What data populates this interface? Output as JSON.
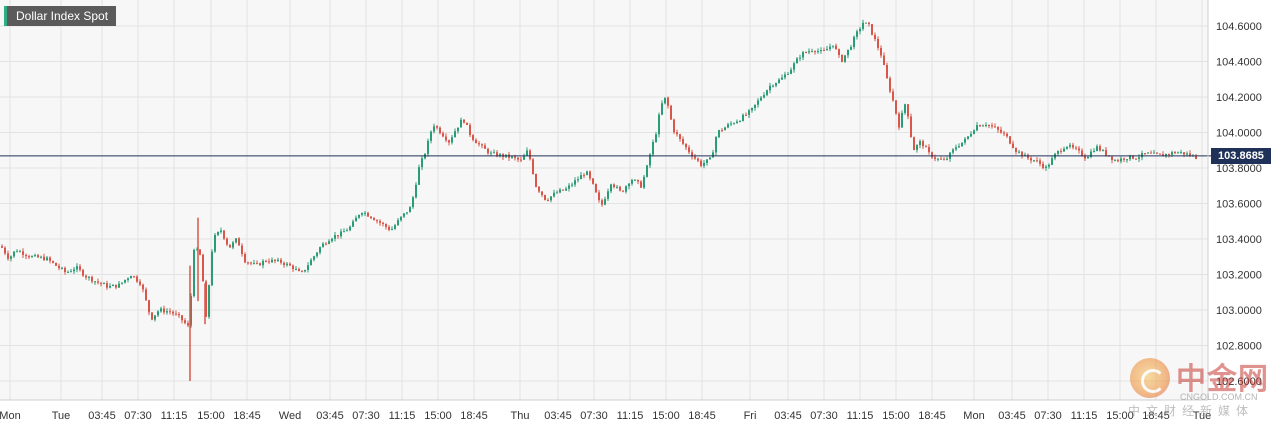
{
  "chart_data": {
    "type": "candlestick",
    "title": "Dollar Index Spot",
    "current_price": "103.8685",
    "current_value": 103.8685,
    "ylim": [
      102.55,
      104.7
    ],
    "y_ticks": [
      "104.6000",
      "104.4000",
      "104.2000",
      "104.0000",
      "103.8000",
      "103.6000",
      "103.4000",
      "103.2000",
      "103.0000",
      "102.8000",
      "102.6000"
    ],
    "x_tick_labels": [
      "Mon",
      "Tue",
      "03:45",
      "07:30",
      "11:15",
      "15:00",
      "18:45",
      "Wed",
      "03:45",
      "07:30",
      "11:15",
      "15:00",
      "18:45",
      "Thu",
      "03:45",
      "07:30",
      "11:15",
      "15:00",
      "18:45",
      "Fri",
      "03:45",
      "07:30",
      "11:15",
      "15:00",
      "18:45",
      "Mon",
      "03:45",
      "07:30",
      "11:15",
      "15:00",
      "18:45",
      "Tue"
    ],
    "grid": true,
    "colors": {
      "up": "#2b9d74",
      "down": "#d9574a",
      "price_line": "#1f3159"
    },
    "series": [
      {
        "name": "",
        "anchors": [
          [
            0,
            103.36
          ],
          [
            8,
            103.29
          ],
          [
            15,
            103.34
          ],
          [
            30,
            103.3
          ],
          [
            45,
            103.29
          ],
          [
            55,
            103.25
          ],
          [
            65,
            103.21
          ],
          [
            75,
            103.24
          ],
          [
            85,
            103.19
          ],
          [
            95,
            103.16
          ],
          [
            108,
            103.13
          ],
          [
            118,
            103.14
          ],
          [
            130,
            103.2
          ],
          [
            140,
            103.15
          ],
          [
            150,
            102.95
          ],
          [
            158,
            103.0
          ],
          [
            170,
            102.99
          ],
          [
            180,
            102.95
          ],
          [
            188,
            102.9
          ],
          [
            193,
            103.35
          ],
          [
            200,
            103.3
          ],
          [
            205,
            102.95
          ],
          [
            212,
            103.4
          ],
          [
            220,
            103.45
          ],
          [
            228,
            103.35
          ],
          [
            236,
            103.4
          ],
          [
            244,
            103.28
          ],
          [
            255,
            103.25
          ],
          [
            265,
            103.28
          ],
          [
            280,
            103.27
          ],
          [
            292,
            103.24
          ],
          [
            300,
            103.2
          ],
          [
            310,
            103.28
          ],
          [
            320,
            103.36
          ],
          [
            330,
            103.41
          ],
          [
            340,
            103.43
          ],
          [
            350,
            103.47
          ],
          [
            360,
            103.56
          ],
          [
            372,
            103.52
          ],
          [
            382,
            103.48
          ],
          [
            390,
            103.45
          ],
          [
            400,
            103.52
          ],
          [
            410,
            103.58
          ],
          [
            418,
            103.8
          ],
          [
            425,
            103.9
          ],
          [
            432,
            104.05
          ],
          [
            440,
            104.0
          ],
          [
            448,
            103.95
          ],
          [
            455,
            104.02
          ],
          [
            462,
            104.08
          ],
          [
            470,
            103.98
          ],
          [
            480,
            103.92
          ],
          [
            490,
            103.88
          ],
          [
            500,
            103.87
          ],
          [
            510,
            103.86
          ],
          [
            520,
            103.84
          ],
          [
            527,
            103.9
          ],
          [
            535,
            103.7
          ],
          [
            545,
            103.62
          ],
          [
            555,
            103.66
          ],
          [
            565,
            103.68
          ],
          [
            575,
            103.73
          ],
          [
            585,
            103.78
          ],
          [
            592,
            103.7
          ],
          [
            600,
            103.58
          ],
          [
            610,
            103.72
          ],
          [
            620,
            103.66
          ],
          [
            630,
            103.74
          ],
          [
            640,
            103.7
          ],
          [
            645,
            103.78
          ],
          [
            650,
            103.9
          ],
          [
            655,
            104.0
          ],
          [
            660,
            104.15
          ],
          [
            665,
            104.2
          ],
          [
            672,
            104.02
          ],
          [
            680,
            103.95
          ],
          [
            690,
            103.88
          ],
          [
            700,
            103.82
          ],
          [
            710,
            103.85
          ],
          [
            716,
            104.0
          ],
          [
            730,
            104.05
          ],
          [
            740,
            104.08
          ],
          [
            750,
            104.12
          ],
          [
            760,
            104.2
          ],
          [
            770,
            104.27
          ],
          [
            780,
            104.3
          ],
          [
            790,
            104.36
          ],
          [
            800,
            104.44
          ],
          [
            812,
            104.47
          ],
          [
            822,
            104.45
          ],
          [
            832,
            104.5
          ],
          [
            840,
            104.4
          ],
          [
            848,
            104.47
          ],
          [
            855,
            104.55
          ],
          [
            862,
            104.62
          ],
          [
            868,
            104.6
          ],
          [
            874,
            104.52
          ],
          [
            880,
            104.44
          ],
          [
            886,
            104.3
          ],
          [
            892,
            104.18
          ],
          [
            898,
            104.04
          ],
          [
            905,
            104.18
          ],
          [
            912,
            103.9
          ],
          [
            920,
            103.95
          ],
          [
            928,
            103.88
          ],
          [
            936,
            103.85
          ],
          [
            944,
            103.84
          ],
          [
            955,
            103.92
          ],
          [
            965,
            103.96
          ],
          [
            975,
            104.04
          ],
          [
            985,
            104.05
          ],
          [
            995,
            104.02
          ],
          [
            1005,
            103.98
          ],
          [
            1015,
            103.9
          ],
          [
            1025,
            103.86
          ],
          [
            1035,
            103.84
          ],
          [
            1045,
            103.8
          ],
          [
            1055,
            103.88
          ],
          [
            1065,
            103.93
          ],
          [
            1075,
            103.9
          ],
          [
            1085,
            103.86
          ],
          [
            1095,
            103.92
          ],
          [
            1105,
            103.88
          ],
          [
            1115,
            103.84
          ],
          [
            1125,
            103.86
          ],
          [
            1135,
            103.86
          ],
          [
            1145,
            103.88
          ],
          [
            1160,
            103.87
          ],
          [
            1175,
            103.89
          ],
          [
            1185,
            103.88
          ],
          [
            1195,
            103.86
          ]
        ]
      }
    ]
  },
  "watermark": {
    "brand_cn": "中金网",
    "url": "CNGOLD.COM.CN",
    "tagline": "中文财经新媒体"
  }
}
